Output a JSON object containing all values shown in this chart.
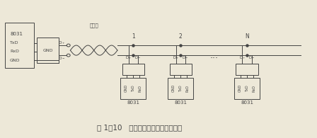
{
  "bg_color": "#ede8d8",
  "line_color": "#444444",
  "title": "图 1－10   单片机远距离串行通信应用",
  "title_fontsize": 7.5,
  "label_8031_master": "8031",
  "label_txd": "TxD",
  "label_rxd": "RxD",
  "label_gnd": "GND",
  "label_shuangjiaoxian": "双绞线",
  "slave_labels": [
    "1",
    "2",
    "N"
  ],
  "slave_8031": "8031",
  "dots_label": "..."
}
